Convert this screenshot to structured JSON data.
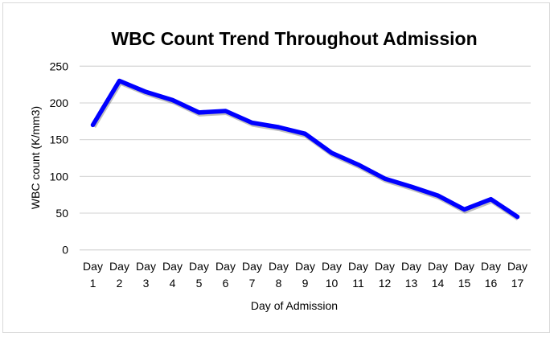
{
  "chart_data": {
    "type": "line",
    "title": "WBC Count Trend Throughout Admission",
    "xlabel": "Day of Admission",
    "ylabel": "WBC count (K/mm3)",
    "categories": [
      "Day 1",
      "Day 2",
      "Day 3",
      "Day 4",
      "Day 5",
      "Day 6",
      "Day 7",
      "Day 8",
      "Day 9",
      "Day 10",
      "Day 11",
      "Day 12",
      "Day 13",
      "Day 14",
      "Day 15",
      "Day 16",
      "Day 17"
    ],
    "series": [
      {
        "values": [
          170,
          230,
          215,
          204,
          187,
          189,
          173,
          167,
          158,
          132,
          116,
          97,
          86,
          74,
          55,
          69,
          45
        ]
      }
    ],
    "ylim": [
      0,
      250
    ],
    "yticks": [
      0,
      50,
      100,
      150,
      200,
      250
    ],
    "grid": true,
    "legend": "none",
    "line_color": "#0000ff",
    "grid_color": "#d9d9d9"
  }
}
